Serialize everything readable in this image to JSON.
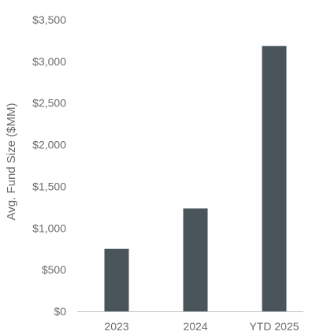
{
  "chart_data": {
    "type": "bar",
    "title": "",
    "xlabel": "",
    "ylabel": "Avg. Fund Size ($MM)",
    "categories": [
      "2023",
      "2024",
      "YTD 2025"
    ],
    "values": [
      750,
      1235,
      3185
    ],
    "ylim": [
      0,
      3500
    ],
    "y_ticks": [
      0,
      500,
      1000,
      1500,
      2000,
      2500,
      3000,
      3500
    ],
    "y_tick_labels": [
      "$0",
      "$500",
      "$1,000",
      "$1,500",
      "$2,000",
      "$2,500",
      "$3,000",
      "$3,500"
    ],
    "grid": false,
    "legend": "none",
    "colors": {
      "bar": "#4a545b",
      "axis": "#bdbdbd",
      "text": "#6b6b6b"
    }
  }
}
